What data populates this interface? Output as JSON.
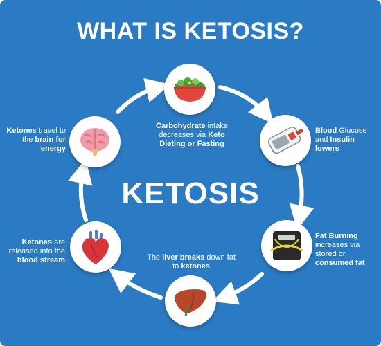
{
  "title": "WHAT IS KETOSIS?",
  "center": "KETOSIS",
  "colors": {
    "background": "#2b7bc4",
    "text": "#ffffff",
    "node": "#ffffff"
  },
  "steps": [
    {
      "icon": "salad-bowl-icon",
      "parts": [
        {
          "t": "Carbohydrate",
          "b": true
        },
        {
          "t": " intake decreases via ",
          "b": false
        },
        {
          "t": "Keto Dieting or Fasting",
          "b": true
        }
      ]
    },
    {
      "icon": "glucose-meter-icon",
      "parts": [
        {
          "t": "Blood",
          "b": true
        },
        {
          "t": " Glucose and ",
          "b": false
        },
        {
          "t": "Insulin lowers",
          "b": true
        }
      ]
    },
    {
      "icon": "scale-measuring-tape-icon",
      "parts": [
        {
          "t": "Fat Burning",
          "b": true
        },
        {
          "t": " increases via stored or ",
          "b": false
        },
        {
          "t": "consumed fat",
          "b": true
        }
      ]
    },
    {
      "icon": "liver-icon",
      "parts": [
        {
          "t": "The ",
          "b": false
        },
        {
          "t": "liver breaks",
          "b": true
        },
        {
          "t": " down fat to ",
          "b": false
        },
        {
          "t": "ketones",
          "b": true
        }
      ]
    },
    {
      "icon": "heart-icon",
      "parts": [
        {
          "t": "Ketones",
          "b": true
        },
        {
          "t": " are released into the ",
          "b": false
        },
        {
          "t": "blood stream",
          "b": true
        }
      ]
    },
    {
      "icon": "brain-icon",
      "parts": [
        {
          "t": "Ketones",
          "b": true
        },
        {
          "t": " travel to the ",
          "b": false
        },
        {
          "t": "brain for energy",
          "b": true
        }
      ]
    }
  ]
}
